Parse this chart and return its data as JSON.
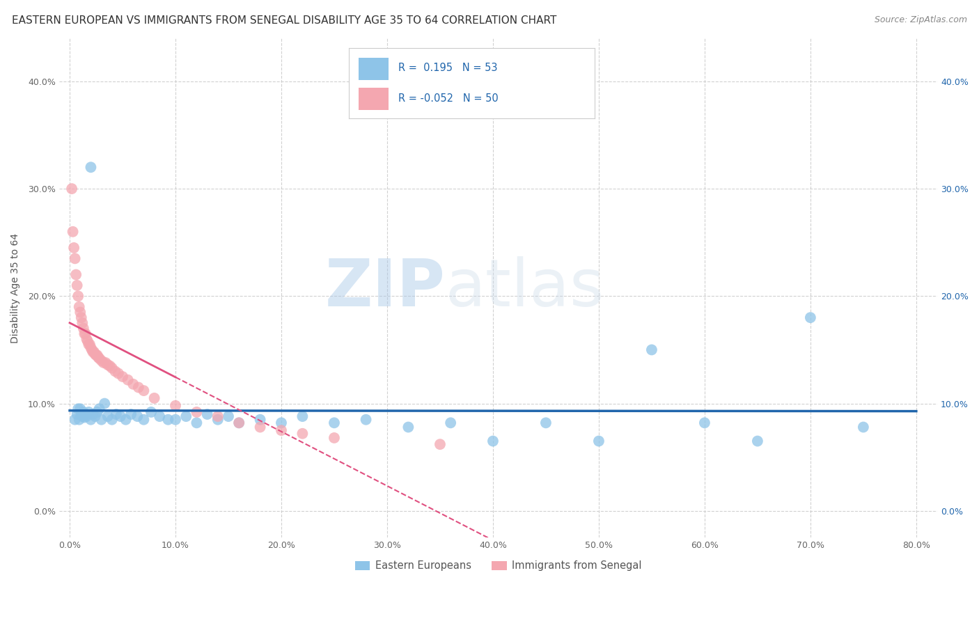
{
  "title": "EASTERN EUROPEAN VS IMMIGRANTS FROM SENEGAL DISABILITY AGE 35 TO 64 CORRELATION CHART",
  "source": "Source: ZipAtlas.com",
  "ylabel": "Disability Age 35 to 64",
  "x_ticks": [
    0.0,
    0.1,
    0.2,
    0.3,
    0.4,
    0.5,
    0.6,
    0.7,
    0.8
  ],
  "x_tick_labels": [
    "0.0%",
    "10.0%",
    "20.0%",
    "30.0%",
    "40.0%",
    "50.0%",
    "60.0%",
    "70.0%",
    "80.0%"
  ],
  "y_ticks": [
    0.0,
    0.1,
    0.2,
    0.3,
    0.4
  ],
  "y_tick_labels": [
    "0.0%",
    "10.0%",
    "20.0%",
    "30.0%",
    "40.0%"
  ],
  "xlim": [
    -0.01,
    0.82
  ],
  "ylim": [
    -0.025,
    0.44
  ],
  "R_blue": 0.195,
  "N_blue": 53,
  "R_pink": -0.052,
  "N_pink": 50,
  "legend_label_blue": "Eastern Europeans",
  "legend_label_pink": "Immigrants from Senegal",
  "blue_color": "#8ec4e8",
  "pink_color": "#f4a7b0",
  "blue_line_color": "#2166ac",
  "pink_line_color": "#e05080",
  "watermark_zip": "ZIP",
  "watermark_atlas": "atlas",
  "background_color": "#ffffff",
  "grid_color": "#cccccc",
  "title_color": "#333333",
  "legend_text_color": "#2166ac",
  "title_fontsize": 11,
  "axis_label_fontsize": 10,
  "tick_fontsize": 9,
  "legend_fontsize": 11,
  "source_fontsize": 9,
  "blue_scatter_x": [
    0.005,
    0.007,
    0.008,
    0.009,
    0.01,
    0.011,
    0.012,
    0.013,
    0.014,
    0.015,
    0.016,
    0.018,
    0.02,
    0.022,
    0.024,
    0.026,
    0.028,
    0.03,
    0.033,
    0.036,
    0.04,
    0.044,
    0.048,
    0.053,
    0.058,
    0.064,
    0.07,
    0.077,
    0.085,
    0.093,
    0.1,
    0.11,
    0.12,
    0.13,
    0.14,
    0.15,
    0.16,
    0.18,
    0.2,
    0.22,
    0.25,
    0.28,
    0.32,
    0.36,
    0.4,
    0.45,
    0.5,
    0.55,
    0.6,
    0.65,
    0.7,
    0.75,
    0.02
  ],
  "blue_scatter_y": [
    0.085,
    0.09,
    0.095,
    0.085,
    0.095,
    0.09,
    0.088,
    0.092,
    0.087,
    0.09,
    0.088,
    0.092,
    0.085,
    0.09,
    0.088,
    0.092,
    0.095,
    0.085,
    0.1,
    0.088,
    0.085,
    0.09,
    0.088,
    0.085,
    0.09,
    0.088,
    0.085,
    0.092,
    0.088,
    0.085,
    0.085,
    0.088,
    0.082,
    0.09,
    0.085,
    0.088,
    0.082,
    0.085,
    0.082,
    0.088,
    0.082,
    0.085,
    0.078,
    0.082,
    0.065,
    0.082,
    0.065,
    0.15,
    0.082,
    0.065,
    0.18,
    0.078,
    0.32
  ],
  "pink_scatter_x": [
    0.002,
    0.003,
    0.004,
    0.005,
    0.006,
    0.007,
    0.008,
    0.009,
    0.01,
    0.011,
    0.012,
    0.013,
    0.014,
    0.015,
    0.016,
    0.017,
    0.018,
    0.019,
    0.02,
    0.021,
    0.022,
    0.023,
    0.024,
    0.025,
    0.026,
    0.027,
    0.028,
    0.03,
    0.032,
    0.034,
    0.036,
    0.038,
    0.04,
    0.043,
    0.046,
    0.05,
    0.055,
    0.06,
    0.065,
    0.07,
    0.08,
    0.1,
    0.12,
    0.14,
    0.16,
    0.18,
    0.2,
    0.22,
    0.25,
    0.35
  ],
  "pink_scatter_y": [
    0.3,
    0.26,
    0.245,
    0.235,
    0.22,
    0.21,
    0.2,
    0.19,
    0.185,
    0.18,
    0.175,
    0.17,
    0.165,
    0.165,
    0.16,
    0.158,
    0.155,
    0.155,
    0.152,
    0.15,
    0.148,
    0.148,
    0.146,
    0.145,
    0.145,
    0.143,
    0.142,
    0.14,
    0.138,
    0.138,
    0.136,
    0.135,
    0.133,
    0.13,
    0.128,
    0.125,
    0.122,
    0.118,
    0.115,
    0.112,
    0.105,
    0.098,
    0.092,
    0.088,
    0.082,
    0.078,
    0.075,
    0.072,
    0.068,
    0.062
  ]
}
